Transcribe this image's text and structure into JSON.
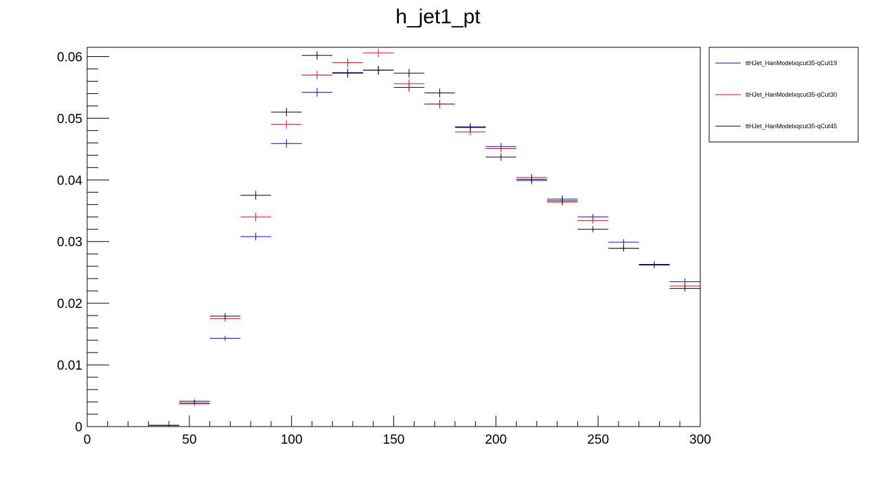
{
  "chart_data": {
    "type": "scatter",
    "title": "h_jet1_pt",
    "xlabel": "",
    "ylabel": "",
    "xlim": [
      0,
      300
    ],
    "ylim": [
      0,
      0.0615
    ],
    "x_ticks": [
      0,
      50,
      100,
      150,
      200,
      250,
      300
    ],
    "y_ticks": [
      0,
      0.01,
      0.02,
      0.03,
      0.04,
      0.05,
      0.06
    ],
    "x_tick_labels": [
      "0",
      "50",
      "100",
      "150",
      "200",
      "250",
      "300"
    ],
    "y_tick_labels": [
      "0",
      "0.01",
      "0.02",
      "0.03",
      "0.04",
      "0.05",
      "0.06"
    ],
    "bin_edges": [
      15,
      30,
      45,
      60,
      75,
      90,
      105,
      120,
      135,
      150,
      165,
      180,
      195,
      210,
      225,
      240,
      255,
      270,
      285,
      300
    ],
    "x": [
      22.5,
      37.5,
      52.5,
      67.5,
      82.5,
      97.5,
      112.5,
      127.5,
      142.5,
      157.5,
      172.5,
      187.5,
      202.5,
      217.5,
      232.5,
      247.5,
      262.5,
      277.5,
      292.5
    ],
    "grid": false,
    "legend_position": "top-right",
    "series": [
      {
        "name": "ttHJet_HanModelxqcut35-qCut19",
        "color": "#0000ff",
        "values": [
          0.0,
          0.0002,
          0.0038,
          0.0143,
          0.0308,
          0.0459,
          0.0542,
          0.0574,
          0.0578,
          0.055,
          0.0523,
          0.0486,
          0.0454,
          0.0399,
          0.0369,
          0.034,
          0.0299,
          0.0263,
          0.0235
        ],
        "errors": [
          0.0,
          5e-05,
          0.0003,
          0.0004,
          0.0006,
          0.0007,
          0.0007,
          0.0007,
          0.0007,
          0.0007,
          0.0007,
          0.0006,
          0.0006,
          0.0006,
          0.0006,
          0.0005,
          0.0005,
          0.0005,
          0.0005
        ]
      },
      {
        "name": "ttHJet_HanModelxqcut35-qCut30",
        "color": "#ff0000",
        "values": [
          0.0,
          0.0002,
          0.0037,
          0.0175,
          0.034,
          0.049,
          0.057,
          0.059,
          0.0606,
          0.0556,
          0.0523,
          0.0478,
          0.0451,
          0.0404,
          0.0364,
          0.0334,
          0.0289,
          0.0262,
          0.0228
        ],
        "errors": [
          0.0,
          5e-05,
          0.0003,
          0.0005,
          0.0007,
          0.0007,
          0.0007,
          0.0007,
          0.0007,
          0.0007,
          0.0007,
          0.0006,
          0.0006,
          0.0006,
          0.0006,
          0.0005,
          0.0005,
          0.0005,
          0.0005
        ]
      },
      {
        "name": "ttHJet_HanModelxqcut35-qCut45",
        "color": "#000000",
        "values": [
          0.0,
          0.0002,
          0.0041,
          0.0179,
          0.0375,
          0.051,
          0.0602,
          0.0573,
          0.0578,
          0.0573,
          0.0541,
          0.0485,
          0.0437,
          0.0401,
          0.0366,
          0.032,
          0.0289,
          0.0262,
          0.0224
        ],
        "errors": [
          0.0,
          5e-05,
          0.0003,
          0.0005,
          0.0007,
          0.0007,
          0.0007,
          0.0007,
          0.0007,
          0.0007,
          0.0007,
          0.0006,
          0.0006,
          0.0006,
          0.0006,
          0.0005,
          0.0005,
          0.0005,
          0.0005
        ]
      }
    ]
  }
}
